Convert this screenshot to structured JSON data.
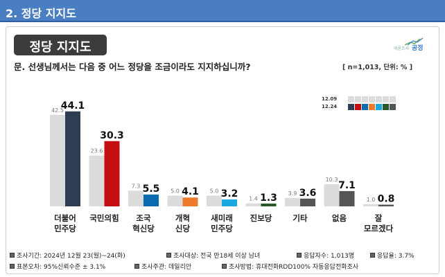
{
  "header": {
    "title": "2. 정당 지지도"
  },
  "badge": {
    "title": "정당 지지도"
  },
  "logo": {
    "line1": "여론조사",
    "line2": "공정"
  },
  "question": {
    "text": "문. 선생님께서는 다음 중 어느 정당을 조금이라도 지지하십니까?",
    "sample": "[ n=1,013, 단위: % ]"
  },
  "colors": {
    "prev": "#dcdcdc",
    "parties": [
      "#2f3d52",
      "#c40e12",
      "#0a6ab0",
      "#ee7a2e",
      "#19a8df",
      "#27582b",
      "#555555",
      "#555555",
      "#555555"
    ]
  },
  "chart_data": {
    "type": "bar",
    "categories": [
      "더불어\n민주당",
      "국민의힘",
      "조국\n혁신당",
      "개혁\n신당",
      "새미래\n민주당",
      "진보당",
      "기타",
      "없음",
      "잘\n모르겠다"
    ],
    "series": [
      {
        "name": "12.09",
        "values": [
          42.5,
          23.6,
          7.3,
          5.0,
          5.0,
          1.4,
          3.9,
          10.3,
          1.0
        ]
      },
      {
        "name": "12.24",
        "values": [
          44.1,
          30.3,
          5.5,
          4.1,
          3.2,
          1.3,
          3.6,
          7.1,
          0.8
        ]
      }
    ],
    "legend_position": "top-right",
    "grid": false
  },
  "footer": {
    "row1": [
      "조사기간: 2024년 12월 23(월)~24(화)",
      "조사대상: 전국 만18세 이상 남녀",
      "응답자수: 1,013명",
      "응답율: 3.7%"
    ],
    "row2": [
      "표본오차: 95%신뢰수준 ± 3.1%",
      "조사주관: 데일리안",
      "조사방법: 휴대전화RDD100% 자동응답전화조사"
    ]
  }
}
